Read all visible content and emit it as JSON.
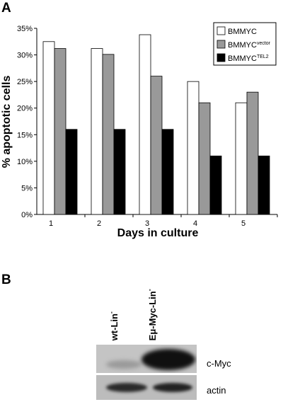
{
  "panels": {
    "a": "A",
    "b": "B"
  },
  "colors": {
    "bmmyc": "#ffffff",
    "vector": "#999999",
    "tel2": "#000000"
  },
  "chart_data": {
    "type": "bar",
    "categories": [
      "1",
      "2",
      "3",
      "4",
      "5"
    ],
    "ylim": [
      0,
      35
    ],
    "yticks": [
      "0%",
      "5%",
      "10%",
      "15%",
      "20%",
      "25%",
      "30%",
      "35%"
    ],
    "xlabel": "Days in culture",
    "ylabel": "% apoptotic cells",
    "grid": false,
    "legend_position": "top-right",
    "series": [
      {
        "name": "BMMYC",
        "base": "BMMYC",
        "sup": "",
        "values": [
          32.5,
          31.2,
          33.8,
          25,
          21
        ]
      },
      {
        "name": "BMMYC vector",
        "base": "BMMYC",
        "sup": "vector",
        "values": [
          31.2,
          30.1,
          26,
          21,
          23
        ]
      },
      {
        "name": "BMMYC TEL2",
        "base": "BMMYC",
        "sup": "TEL2",
        "values": [
          16,
          16,
          16,
          11,
          11
        ]
      }
    ]
  },
  "blot": {
    "lanes": [
      {
        "base": "wt-Lin",
        "sup": "-"
      },
      {
        "base": "Eμ-Myc-Lin",
        "sup": "-"
      }
    ],
    "rows": {
      "myc": "c-Myc",
      "actin": "actin"
    }
  }
}
